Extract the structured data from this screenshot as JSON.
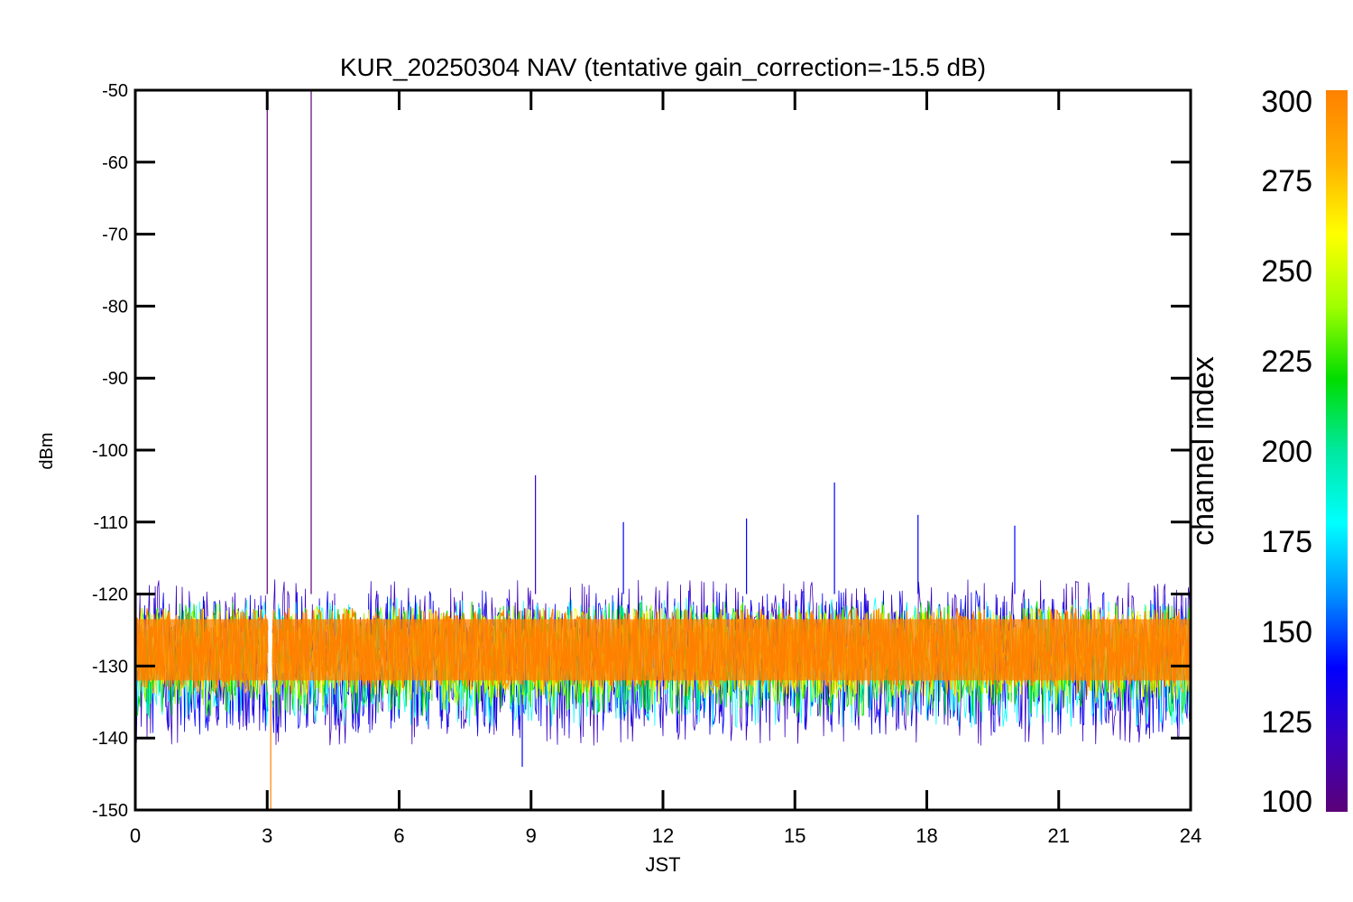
{
  "chart_data": {
    "type": "line",
    "title": "KUR_20250304 NAV (tentative gain_correction=-15.5 dB)",
    "xlabel": "JST",
    "ylabel": "dBm",
    "xlim": [
      0,
      24
    ],
    "ylim": [
      -150,
      -50
    ],
    "x_ticks": [
      "0",
      "3",
      "6",
      "9",
      "12",
      "15",
      "18",
      "21",
      "24"
    ],
    "y_ticks": [
      "-50",
      "-60",
      "-70",
      "-80",
      "-90",
      "-100",
      "-110",
      "-120",
      "-130",
      "-140",
      "-150"
    ],
    "band": {
      "description_level": "noise floor",
      "center_dbm": -127.5,
      "core_range_dbm": [
        -133,
        -122
      ],
      "outer_range_dbm": [
        -141,
        -118
      ]
    },
    "spikes": [
      {
        "x": 3.0,
        "y": -50,
        "channel": 100
      },
      {
        "x": 4.0,
        "y": -50,
        "channel": 105
      },
      {
        "x": 9.1,
        "y": -103.5,
        "channel": 110
      },
      {
        "x": 11.1,
        "y": -110,
        "channel": 140
      },
      {
        "x": 13.9,
        "y": -109.5,
        "channel": 140
      },
      {
        "x": 15.9,
        "y": -104.5,
        "channel": 140
      },
      {
        "x": 17.8,
        "y": -109,
        "channel": 140
      },
      {
        "x": 20.0,
        "y": -110.5,
        "channel": 140
      },
      {
        "x": 3.08,
        "y": -150,
        "channel": 290
      },
      {
        "x": 8.8,
        "y": -144,
        "channel": 130
      }
    ],
    "gap": {
      "x_start": 3.02,
      "x_end": 3.12
    },
    "colorbar": {
      "label": "channel index",
      "range": [
        100,
        300
      ],
      "ticks": [
        "300",
        "275",
        "250",
        "225",
        "200",
        "175",
        "150",
        "125",
        "100"
      ],
      "colors": [
        "#5a0078",
        "#3a00c0",
        "#0000ff",
        "#0090ff",
        "#00ffff",
        "#00e8a0",
        "#00dd00",
        "#a0ff00",
        "#ffff00",
        "#ffb000",
        "#ff8000"
      ]
    },
    "grid": false
  }
}
